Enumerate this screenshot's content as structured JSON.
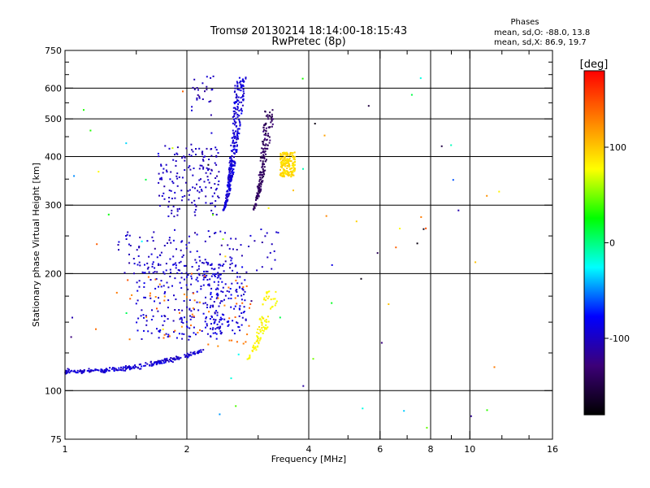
{
  "chart_data": {
    "type": "scatter",
    "title": "Tromsø 20130214 18:14:00-18:15:43",
    "subtitle": "RwPretec (8p)",
    "xlabel": "Frequency [MHz]",
    "ylabel": "Stationary phase Virtual Height [km]",
    "x_scale": "log",
    "y_scale": "log",
    "xlim": [
      1,
      16
    ],
    "ylim": [
      75,
      750
    ],
    "x_ticks": [
      1,
      2,
      4,
      6,
      8,
      10,
      16
    ],
    "y_ticks": [
      75,
      100,
      200,
      300,
      400,
      500,
      600,
      750
    ],
    "x_minor_ticks": [
      1.5,
      3,
      5,
      7,
      9,
      12,
      14
    ],
    "y_minor_ticks": [
      125,
      150,
      175,
      250,
      350,
      450,
      550,
      650,
      700
    ],
    "grid_x": [
      2,
      4,
      6,
      8,
      10
    ],
    "grid_y": [
      100,
      200,
      300,
      400,
      500,
      600
    ],
    "grid": true,
    "stats": {
      "title": "Phases",
      "line_o": "mean, sd,O: -88.0, 13.8",
      "line_x": "mean, sd,X:  86.9, 19.7"
    },
    "colorbar": {
      "label": "[deg]",
      "range": [
        -180,
        180
      ],
      "ticks": [
        100,
        0,
        -100
      ],
      "colors": [
        "#ff0000",
        "#ff8000",
        "#ffff00",
        "#00ff00",
        "#00ffff",
        "#0000ff",
        "#3c0078",
        "#000000"
      ]
    },
    "series": [
      {
        "x_range": [
          1.0,
          2.2
        ],
        "y_range": [
          112,
          127
        ],
        "count": 240,
        "phase": -95,
        "shape": "rising"
      },
      {
        "x_range": [
          1.5,
          2.45
        ],
        "y_range": [
          135,
          215
        ],
        "count": 220,
        "phase": -95
      },
      {
        "x_range": [
          2.2,
          2.8
        ],
        "y_range": [
          140,
          215
        ],
        "count": 130,
        "phase": -92
      },
      {
        "x_range": [
          1.4,
          2.9
        ],
        "y_range": [
          130,
          200
        ],
        "count": 55,
        "phase": 135
      },
      {
        "x_range": [
          1.35,
          3.4
        ],
        "y_range": [
          200,
          260
        ],
        "count": 120,
        "phase": -100
      },
      {
        "x_range": [
          1.7,
          2.4
        ],
        "y_range": [
          280,
          430
        ],
        "count": 160,
        "phase": -100
      },
      {
        "x_range": [
          2.45,
          2.8
        ],
        "y_range": [
          290,
          640
        ],
        "count": 300,
        "phase": -92,
        "shape": "cusp"
      },
      {
        "x_range": [
          2.05,
          2.35
        ],
        "y_range": [
          510,
          650
        ],
        "count": 25,
        "phase": -105
      },
      {
        "x_range": [
          2.9,
          3.3
        ],
        "y_range": [
          290,
          530
        ],
        "count": 170,
        "phase": -140,
        "shape": "cusp"
      },
      {
        "x_range": [
          3.4,
          3.7
        ],
        "y_range": [
          355,
          410
        ],
        "count": 170,
        "phase": 92
      },
      {
        "x_range": [
          2.8,
          3.4
        ],
        "y_range": [
          120,
          180
        ],
        "count": 90,
        "phase": 80,
        "shape": "cusp"
      },
      {
        "x_range": [
          1.0,
          12.5
        ],
        "y_range": [
          78,
          650
        ],
        "count": 70,
        "phase": 20
      }
    ]
  }
}
